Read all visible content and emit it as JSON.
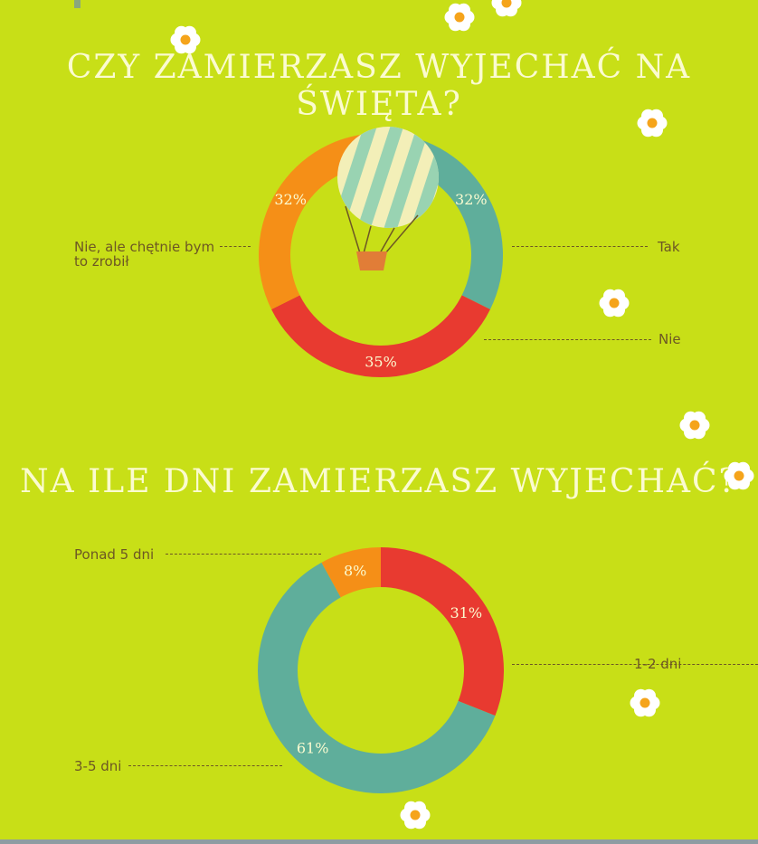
{
  "colors": {
    "background": "#c8df17",
    "teal": "#5fae9b",
    "red": "#e83a30",
    "orange": "#f58f17",
    "text": "#6d5724",
    "title": "#fbfbd0"
  },
  "chart_data": [
    {
      "type": "pie",
      "title": "CZY ZAMIERZASZ WYJECHAĆ NA ŚWIĘTA?",
      "categories": [
        "Tak",
        "Nie",
        "Nie, ale chętnie bym to zrobił"
      ],
      "values": [
        32,
        35,
        32
      ],
      "value_labels": [
        "32%",
        "35%",
        "32%"
      ],
      "colors": [
        "#5fae9b",
        "#e83a30",
        "#f58f17"
      ],
      "donut": true,
      "center_icon": "hot-air-balloon-icon"
    },
    {
      "type": "pie",
      "title": "NA ILE DNI ZAMIERZASZ WYJECHAĆ?",
      "categories": [
        "1-2 dni",
        "3-5 dni",
        "Ponad 5 dni"
      ],
      "values": [
        31,
        61,
        8
      ],
      "value_labels": [
        "31%",
        "61%",
        "8%"
      ],
      "colors": [
        "#e83a30",
        "#5fae9b",
        "#f58f17"
      ],
      "donut": true
    }
  ]
}
